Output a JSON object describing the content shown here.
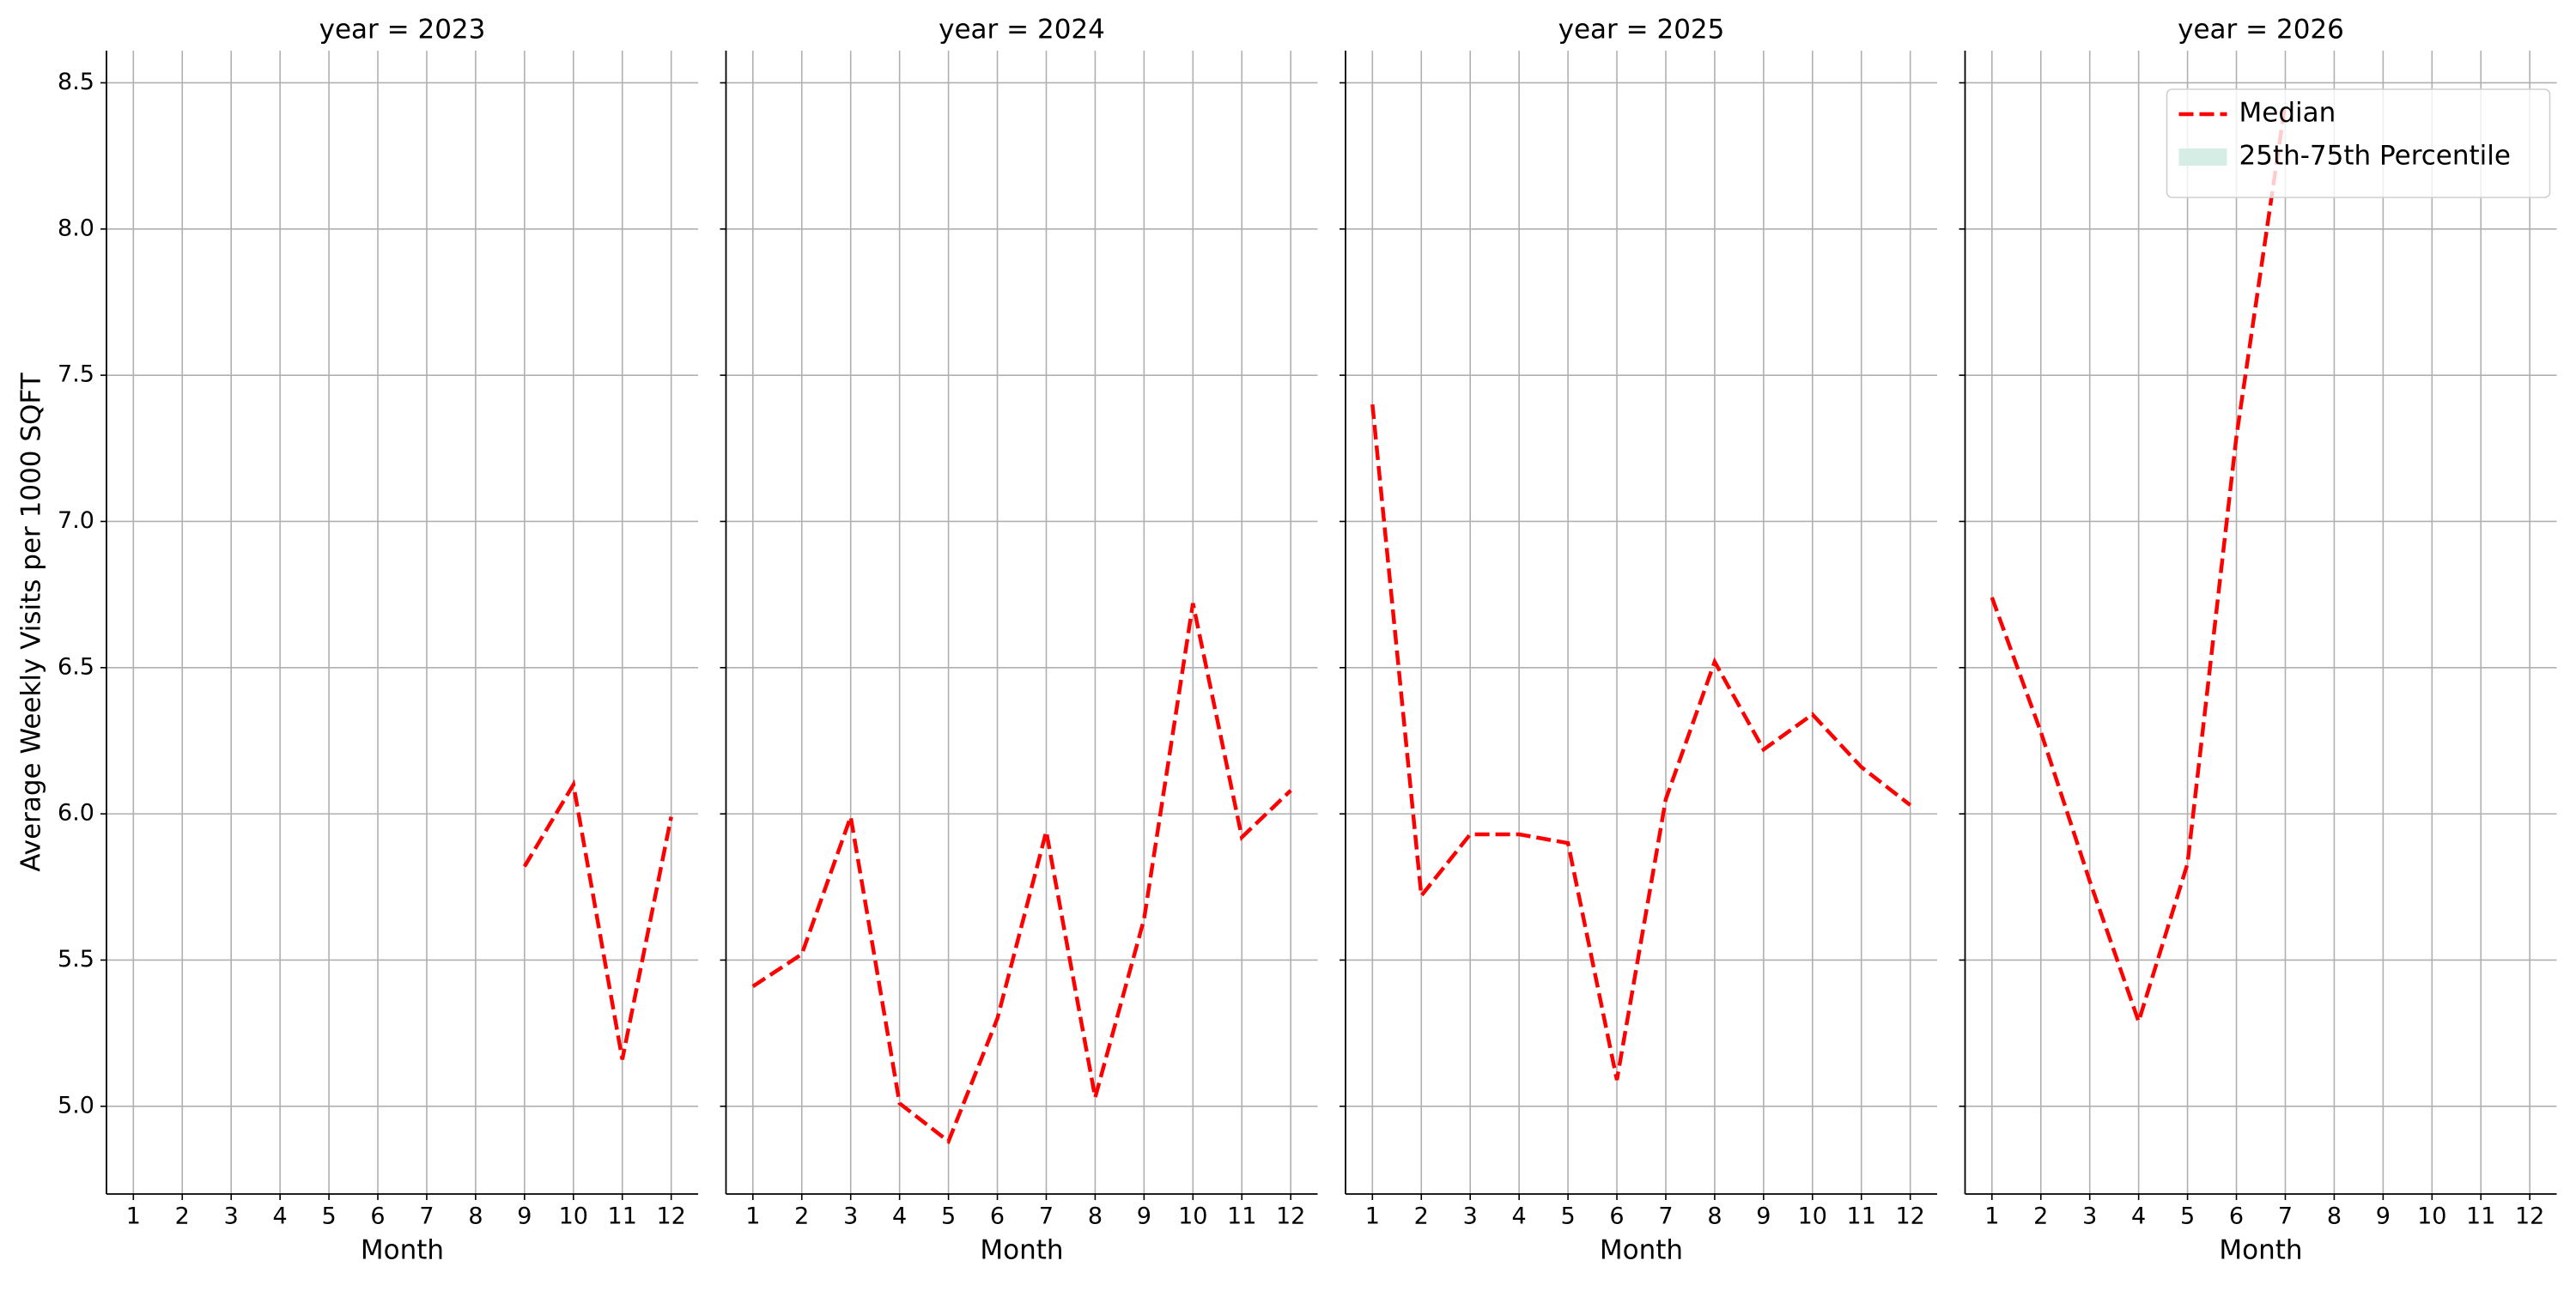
{
  "chart_data": [
    {
      "type": "line",
      "title": "year = 2023",
      "xlabel": "Month",
      "ylabel": "Average Weekly Visits per 1000 SQFT",
      "x": [
        1,
        2,
        3,
        4,
        5,
        6,
        7,
        8,
        9,
        10,
        11,
        12
      ],
      "series": [
        {
          "color": "#ff0000",
          "values": [
            null,
            null,
            null,
            null,
            null,
            null,
            null,
            null,
            5.82,
            6.1,
            5.16,
            5.99
          ]
        }
      ],
      "xlim": [
        0.45,
        12.55
      ],
      "ylim": [
        4.7,
        8.61
      ],
      "xticks": [
        1,
        2,
        3,
        4,
        5,
        6,
        7,
        8,
        9,
        10,
        11,
        12
      ],
      "yticks": [
        {
          "value": 5,
          "label": "5.0"
        },
        5.5,
        {
          "value": 6,
          "label": "6.0"
        },
        6.5,
        {
          "value": 7,
          "label": "7.0"
        },
        7.5,
        {
          "value": 8,
          "label": "8.0"
        },
        8.5
      ],
      "grid": true
    },
    {
      "type": "line",
      "title": "year = 2024",
      "xlabel": "Month",
      "x": [
        1,
        2,
        3,
        4,
        5,
        6,
        7,
        8,
        9,
        10,
        11,
        12
      ],
      "series": [
        {
          "color": "#ff0000",
          "values": [
            5.41,
            5.52,
            5.99,
            5.01,
            4.88,
            5.3,
            5.94,
            5.03,
            5.64,
            6.72,
            5.92,
            6.08
          ]
        }
      ],
      "xlim": [
        0.45,
        12.55
      ],
      "ylim": [
        4.7,
        8.61
      ],
      "xticks": [
        1,
        2,
        3,
        4,
        5,
        6,
        7,
        8,
        9,
        10,
        11,
        12
      ],
      "yticks": [
        5,
        5.5,
        6,
        6.5,
        7,
        7.5,
        8,
        8.5
      ],
      "grid": true
    },
    {
      "type": "line",
      "title": "year = 2025",
      "xlabel": "Month",
      "x": [
        1,
        2,
        3,
        4,
        5,
        6,
        7,
        8,
        9,
        10,
        11,
        12
      ],
      "series": [
        {
          "color": "#ff0000",
          "values": [
            7.4,
            5.72,
            5.93,
            5.93,
            5.9,
            5.09,
            6.05,
            6.52,
            6.22,
            6.34,
            6.16,
            6.03
          ]
        }
      ],
      "xlim": [
        0.45,
        12.55
      ],
      "ylim": [
        4.7,
        8.61
      ],
      "xticks": [
        1,
        2,
        3,
        4,
        5,
        6,
        7,
        8,
        9,
        10,
        11,
        12
      ],
      "yticks": [
        5,
        5.5,
        6,
        6.5,
        7,
        7.5,
        8,
        8.5
      ],
      "grid": true
    },
    {
      "type": "line",
      "title": "year = 2026",
      "xlabel": "Month",
      "x": [
        1,
        2,
        3,
        4,
        5,
        6,
        7,
        8,
        9,
        10,
        11,
        12
      ],
      "series": [
        {
          "name": "Median",
          "color": "#ff0000",
          "values": [
            6.74,
            6.28,
            5.77,
            5.29,
            5.83,
            7.29,
            8.43,
            null,
            null,
            null,
            null,
            null
          ]
        }
      ],
      "bands": [
        {
          "name": "25th-75th Percentile",
          "color": "#d5ede5"
        }
      ],
      "legend": "upper right",
      "xlim": [
        0.45,
        12.55
      ],
      "ylim": [
        4.7,
        8.61
      ],
      "xticks": [
        1,
        2,
        3,
        4,
        5,
        6,
        7,
        8,
        9,
        10,
        11,
        12
      ],
      "yticks": [
        5,
        5.5,
        6,
        6.5,
        7,
        7.5,
        8,
        8.5
      ],
      "grid": true
    }
  ]
}
